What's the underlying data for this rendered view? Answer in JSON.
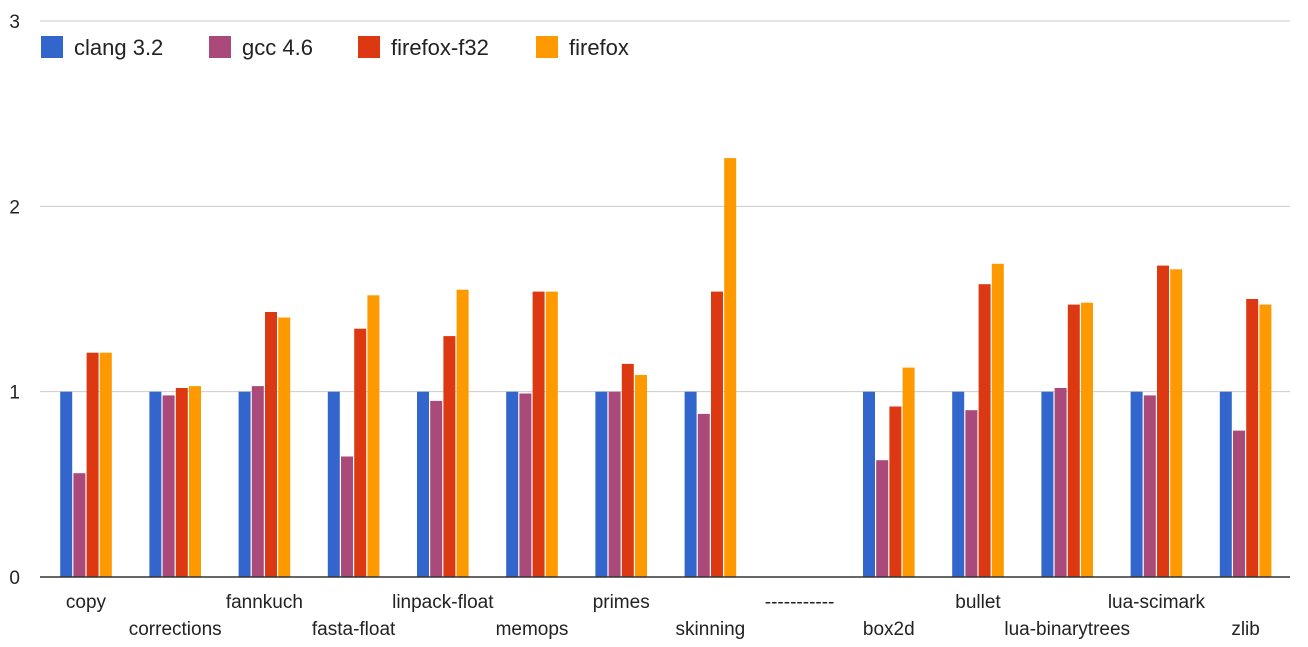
{
  "chart_data": {
    "type": "bar",
    "title": "",
    "xlabel": "",
    "ylabel": "",
    "ylim": [
      0,
      3
    ],
    "yticks": [
      0,
      1,
      2,
      3
    ],
    "grid": true,
    "legend_position": "top-left",
    "categories": [
      "copy",
      "corrections",
      "fannkuch",
      "fasta-float",
      "linpack-float",
      "memops",
      "primes",
      "skinning",
      "-----------",
      "box2d",
      "bullet",
      "lua-binarytrees",
      "lua-scimark",
      "zlib"
    ],
    "series": [
      {
        "name": "clang 3.2",
        "color": "#3366cc",
        "values": [
          1.0,
          1.0,
          1.0,
          1.0,
          1.0,
          1.0,
          1.0,
          1.0,
          null,
          1.0,
          1.0,
          1.0,
          1.0,
          1.0
        ]
      },
      {
        "name": "gcc 4.6",
        "color": "#aa4a7a",
        "values": [
          0.56,
          0.98,
          1.03,
          0.65,
          0.95,
          0.99,
          1.0,
          0.88,
          null,
          0.63,
          0.9,
          1.02,
          0.98,
          0.79
        ]
      },
      {
        "name": "firefox-f32",
        "color": "#dc3912",
        "values": [
          1.21,
          1.02,
          1.43,
          1.34,
          1.3,
          1.54,
          1.15,
          1.54,
          null,
          0.92,
          1.58,
          1.47,
          1.68,
          1.5
        ]
      },
      {
        "name": "firefox",
        "color": "#ff9900",
        "values": [
          1.21,
          1.03,
          1.4,
          1.52,
          1.55,
          1.54,
          1.09,
          2.26,
          null,
          1.13,
          1.69,
          1.48,
          1.66,
          1.47
        ]
      }
    ]
  }
}
